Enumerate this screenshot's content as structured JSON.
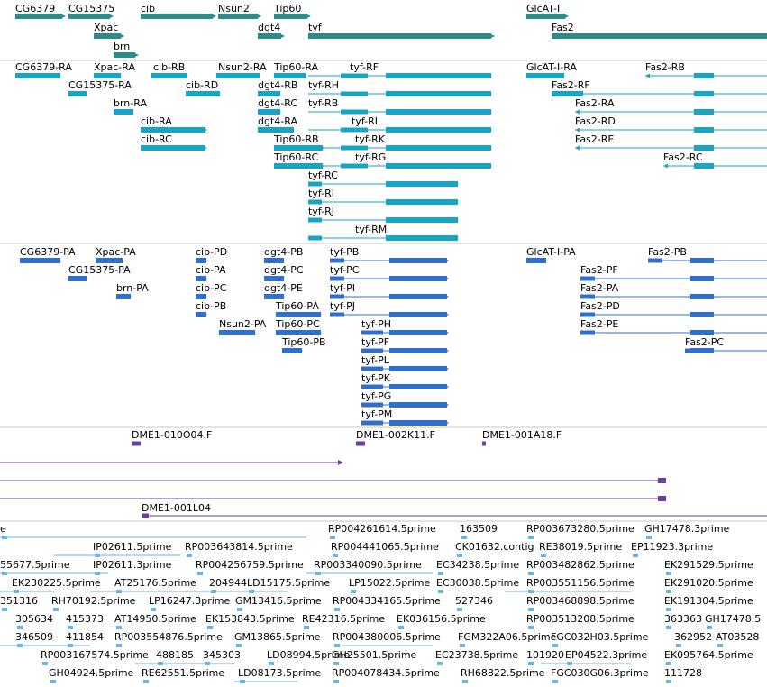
{
  "colors": {
    "gene": "#2c8c8c",
    "transcript": "#13a6c6",
    "protein": "#2f6fd0",
    "clone": "#6a3fa0",
    "est": "#6fb3e0",
    "divider": "#c8c8c8"
  },
  "genes": [
    "CG6379",
    "CG15375",
    "cib",
    "Nsun2",
    "Tip60",
    "GlcAT-I",
    "Xpac",
    "dgt4",
    "tyf",
    "Fas2",
    "brn"
  ],
  "transcripts": [
    "CG6379-RA",
    "Xpac-RA",
    "cib-RB",
    "Nsun2-RA",
    "Tip60-RA",
    "tyf-RF",
    "GlcAT-I-RA",
    "Fas2-RB",
    "CG15375-RA",
    "cib-RD",
    "dgt4-RB",
    "tyf-RH",
    "Fas2-RF",
    "brn-RA",
    "dgt4-RC",
    "tyf-RB",
    "Fas2-RA",
    "cib-RA",
    "dgt4-RA",
    "tyf-RL",
    "Fas2-RD",
    "cib-RC",
    "Tip60-RB",
    "tyf-RK",
    "Fas2-RE",
    "Tip60-RC",
    "tyf-RG",
    "Fas2-RC",
    "tyf-RC",
    "tyf-RI",
    "tyf-RJ",
    "tyf-RM"
  ],
  "proteins": [
    "CG6379-PA",
    "Xpac-PA",
    "cib-PD",
    "dgt4-PB",
    "tyf-PB",
    "GlcAT-I-PA",
    "Fas2-PB",
    "CG15375-PA",
    "cib-PA",
    "dgt4-PC",
    "tyf-PC",
    "Fas2-PF",
    "brn-PA",
    "cib-PC",
    "dgt4-PE",
    "tyf-PI",
    "Fas2-PA",
    "cib-PB",
    "Tip60-PA",
    "tyf-PJ",
    "Fas2-PD",
    "Nsun2-PA",
    "Tip60-PC",
    "tyf-PH",
    "Fas2-PE",
    "Tip60-PB",
    "tyf-PF",
    "Fas2-PC",
    "tyf-PL",
    "tyf-PK",
    "tyf-PG",
    "tyf-PM"
  ],
  "clones": [
    "DME1-010O04.F",
    "DME1-002K11.F",
    "DME1-001A18.F",
    "DME1-001L04"
  ],
  "ests": [
    "e",
    "RP004261614.5prime",
    "163509",
    "RP003673280.5prime",
    "GH17478.3prime",
    "IP02611.5prime",
    "RP003643814.5prime",
    "RP004441065.5prime",
    "CK01632.contig",
    "RE38019.5prime",
    "EP11923.3prime",
    "55677.5prime",
    "IP02611.3prime",
    "RP004256759.5prime",
    "RP003340090.5prime",
    "EC34238.5prime",
    "RP003482862.5prime",
    "EK291529.5prime",
    "EK230225.5prime",
    "AT25176.5prime",
    "204944",
    "LD15175.5prime",
    "LP15022.5prime",
    "EC30038.5prime",
    "RP003551156.5prime",
    "EK291020.5prime",
    "351316",
    "RH70192.5prime",
    "LP16247.3prime",
    "GM13416.5prime",
    "RP004334165.5prime",
    "527346",
    "RP003468898.5prime",
    "EK191304.5prime",
    "305634",
    "415373",
    "AT14950.5prime",
    "EK153843.5prime",
    "RE42316.5prime",
    "EK036156.5prime",
    "RP003513208.5prime",
    "363363",
    "GH17478.5",
    "346509",
    "411854",
    "RP003554876.5prime",
    "GM13865.5prime",
    "RP004380006.5prime",
    "FGM322A06.5prime",
    "FGC032H03.5prime",
    "362952",
    "AT03528",
    "RP003167574.5prime",
    "488185",
    "345303",
    "LD08994.5prime",
    "GH25501.5prime",
    "EC23738.5prime",
    "101920",
    "EP04522.3prime",
    "EK095764.5prime",
    "GH04924.5prime",
    "RE62551.5prime",
    "LD08173.5prime",
    "RP004078434.5prime",
    "RH68822.5prime",
    "FGC030G06.3prime",
    "111728"
  ]
}
